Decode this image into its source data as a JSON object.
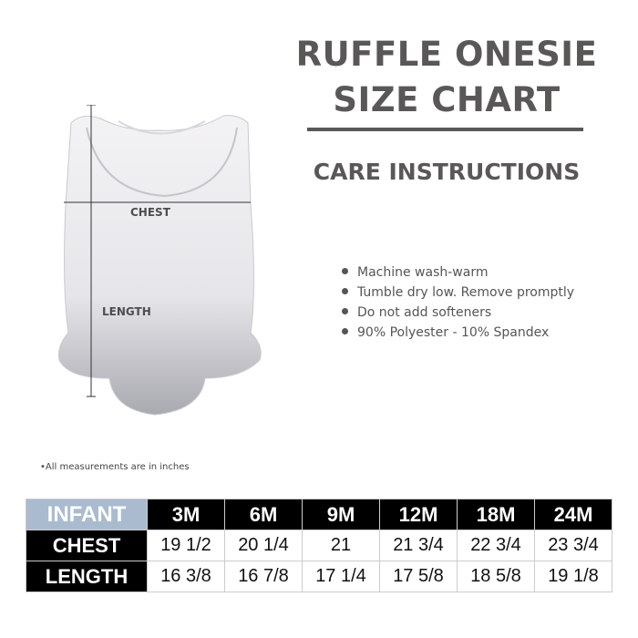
{
  "title": {
    "line1": "RUFFLE ONESIE",
    "line2": "SIZE CHART"
  },
  "care": {
    "heading": "CARE INSTRUCTIONS",
    "items": [
      "Machine wash-warm",
      "Tumble dry low. Remove promptly",
      "Do not add softeners",
      "90% Polyester - 10% Spandex"
    ]
  },
  "diagram": {
    "chest_label": "CHEST",
    "length_label": "LENGTH"
  },
  "note": "•All measurements are in inches",
  "size_table": {
    "corner": "INFANT",
    "sizes": [
      "3M",
      "6M",
      "9M",
      "12M",
      "18M",
      "24M"
    ],
    "rows": [
      {
        "label": "CHEST",
        "values": [
          "19 1/2",
          "20 1/4",
          "21",
          "21 3/4",
          "22 3/4",
          "23 3/4"
        ]
      },
      {
        "label": "LENGTH",
        "values": [
          "16 3/8",
          "16 7/8",
          "17 1/4",
          "17 5/8",
          "18 5/8",
          "19 1/8"
        ]
      }
    ]
  },
  "colors": {
    "heading": "#5a5757",
    "infant_cell": "#aabbd0",
    "header_bg": "#000000"
  }
}
